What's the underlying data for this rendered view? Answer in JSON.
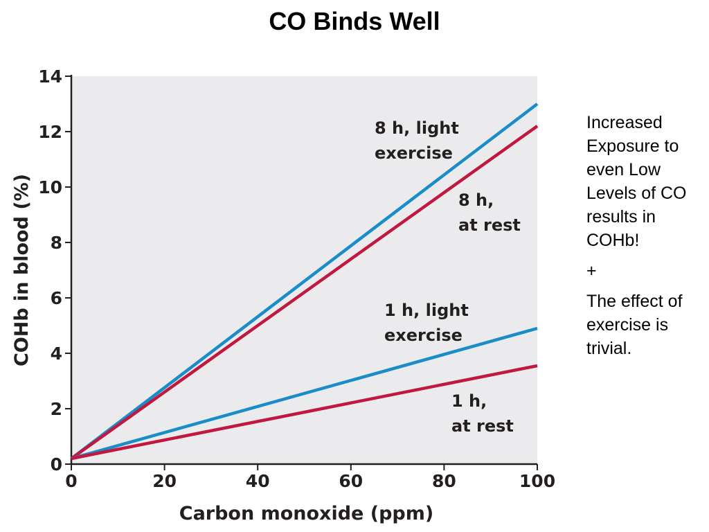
{
  "title": "CO Binds Well",
  "side_note": {
    "paragraphs": [
      "Increased\nExposure to\neven Low\nLevels of CO\nresults in\nCOHb!",
      "+",
      "The effect of\nexercise is\ntrivial."
    ]
  },
  "colors": {
    "plot_background": "#ebebed",
    "blue_series": "#1a8cc8",
    "red_series": "#c0183f",
    "axis": "#231f20"
  },
  "chart_data": {
    "type": "line",
    "xlabel": "Carbon monoxide (ppm)",
    "ylabel": "COHb in blood (%)",
    "xlim": [
      0,
      100
    ],
    "ylim": [
      0,
      14
    ],
    "x_ticks": [
      "0",
      "20",
      "40",
      "60",
      "80",
      "100"
    ],
    "y_ticks": [
      "0",
      "2",
      "4",
      "6",
      "8",
      "10",
      "12",
      "14"
    ],
    "grid": false,
    "series": [
      {
        "label_lines": [
          "8 h, light",
          "exercise"
        ],
        "color": "#1a8cc8",
        "x": [
          0,
          100
        ],
        "y": [
          0.2,
          13.0
        ]
      },
      {
        "label_lines": [
          "8 h,",
          "at rest"
        ],
        "color": "#c0183f",
        "x": [
          0,
          100
        ],
        "y": [
          0.2,
          12.2
        ]
      },
      {
        "label_lines": [
          "1 h, light",
          "exercise"
        ],
        "color": "#1a8cc8",
        "x": [
          0,
          100
        ],
        "y": [
          0.2,
          4.9
        ]
      },
      {
        "label_lines": [
          "1 h,",
          "at rest"
        ],
        "color": "#c0183f",
        "x": [
          0,
          100
        ],
        "y": [
          0.2,
          3.55
        ]
      }
    ]
  }
}
